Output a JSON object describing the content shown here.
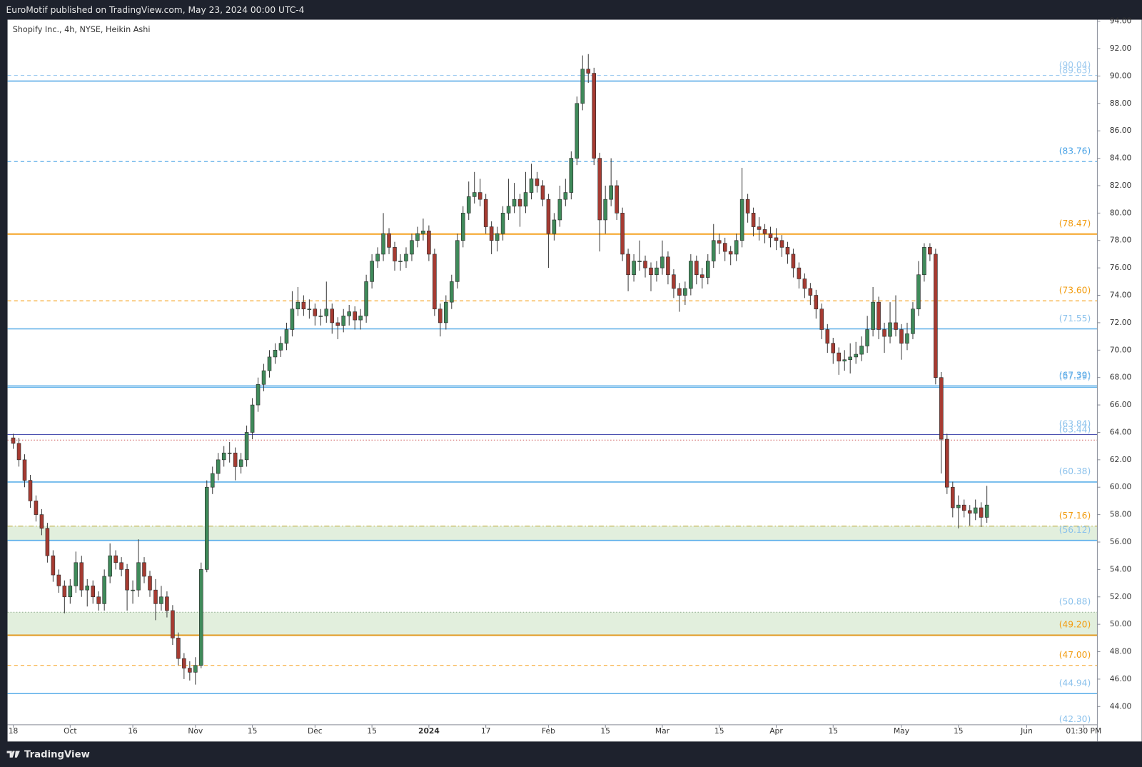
{
  "header": "EuroMotif published on TradingView.com, May 23, 2024 00:00 UTC-4",
  "brand": "TradingView",
  "chart_data": {
    "type": "candlestick",
    "title": "Shopify Inc., 4h, NYSE, Heikin Ashi",
    "up_color": "#3f8a5a",
    "down_color": "#a63b32",
    "wick_color": "#3a3a3a",
    "grid": false,
    "xlim": [
      -1,
      190.4
    ],
    "ylim": [
      42.67,
      94.11
    ],
    "xticks": [
      {
        "value": 0,
        "label": "18"
      },
      {
        "value": 10,
        "label": "Oct"
      },
      {
        "value": 21,
        "label": "16"
      },
      {
        "value": 32,
        "label": "Nov"
      },
      {
        "value": 42,
        "label": "15"
      },
      {
        "value": 53,
        "label": "Dec"
      },
      {
        "value": 63,
        "label": "15"
      },
      {
        "value": 73,
        "label": "2024",
        "bold": true
      },
      {
        "value": 83,
        "label": "17"
      },
      {
        "value": 94,
        "label": "Feb"
      },
      {
        "value": 104,
        "label": "15"
      },
      {
        "value": 114,
        "label": "Mar"
      },
      {
        "value": 124,
        "label": "15"
      },
      {
        "value": 134,
        "label": "Apr"
      },
      {
        "value": 144,
        "label": "15"
      },
      {
        "value": 156,
        "label": "May"
      },
      {
        "value": 166,
        "label": "15"
      },
      {
        "value": 178,
        "label": "Jun"
      },
      {
        "value": 188,
        "label": "01:30 PM"
      }
    ],
    "yticks": [
      {
        "value": 44,
        "label": "44.00"
      },
      {
        "value": 46,
        "label": "46.00"
      },
      {
        "value": 48,
        "label": "48.00"
      },
      {
        "value": 50,
        "label": "50.00"
      },
      {
        "value": 52,
        "label": "52.00"
      },
      {
        "value": 54,
        "label": "54.00"
      },
      {
        "value": 56,
        "label": "56.00"
      },
      {
        "value": 58,
        "label": "58.00"
      },
      {
        "value": 60,
        "label": "60.00"
      },
      {
        "value": 62,
        "label": "62.00"
      },
      {
        "value": 64,
        "label": "64.00"
      },
      {
        "value": 66,
        "label": "66.00"
      },
      {
        "value": 68,
        "label": "68.00"
      },
      {
        "value": 70,
        "label": "70.00"
      },
      {
        "value": 72,
        "label": "72.00"
      },
      {
        "value": 74,
        "label": "74.00"
      },
      {
        "value": 76,
        "label": "76.00"
      },
      {
        "value": 78,
        "label": "78.00"
      },
      {
        "value": 80,
        "label": "80.00"
      },
      {
        "value": 82,
        "label": "82.00"
      },
      {
        "value": 84,
        "label": "84.00"
      },
      {
        "value": 86,
        "label": "86.00"
      },
      {
        "value": 88,
        "label": "88.00"
      },
      {
        "value": 90,
        "label": "90.00"
      },
      {
        "value": 92,
        "label": "92.00"
      },
      {
        "value": 94,
        "label": "94.00"
      }
    ],
    "zones": [
      {
        "from": 56.12,
        "to": 57.16,
        "color": "#e2efdd"
      },
      {
        "from": 49.2,
        "to": 50.88,
        "color": "#e2efdd"
      }
    ],
    "levels": [
      {
        "value": 90.04,
        "label": "(90.04)",
        "color": "#8ec3ee",
        "label_color": "#9fcbef",
        "style": "dashed",
        "width": 1
      },
      {
        "value": 89.63,
        "label": "(89.63)",
        "color": "#4aa3e6",
        "label_color": "#9fcbef",
        "style": "solid",
        "width": 1.5
      },
      {
        "value": 83.76,
        "label": "(83.76)",
        "color": "#4aa3e6",
        "label_color": "#4aa3e6",
        "style": "dashed",
        "width": 1
      },
      {
        "value": 78.47,
        "label": "(78.47)",
        "color": "#f5a11f",
        "label_color": "#f29d12",
        "style": "solid",
        "width": 2
      },
      {
        "value": 73.6,
        "label": "(73.60)",
        "color": "#f5a11f",
        "label_color": "#f29d12",
        "style": "dashed",
        "width": 1
      },
      {
        "value": 71.55,
        "label": "(71.55)",
        "color": "#5aaee8",
        "label_color": "#8cc2ec",
        "style": "solid",
        "width": 1.5
      },
      {
        "value": 67.39,
        "label": "(67.39)",
        "color": "#5aaee8",
        "label_color": "#4aa3e6",
        "style": "solid",
        "width": 1.5
      },
      {
        "value": 67.29,
        "label": "(67.29)",
        "color": "#5aaee8",
        "label_color": "#8cc2ec",
        "style": "solid",
        "width": 1
      },
      {
        "value": 63.84,
        "label": "(63.84)",
        "color": "#4a4fb0",
        "label_color": "#8cc2ec",
        "style": "solid",
        "width": 1
      },
      {
        "value": 63.44,
        "label": "(63.44)",
        "color": "#d06060",
        "label_color": "#8cc2ec",
        "style": "dotted",
        "width": 1
      },
      {
        "value": 60.38,
        "label": "(60.38)",
        "color": "#5aaee8",
        "label_color": "#8cc2ec",
        "style": "solid",
        "width": 1.5
      },
      {
        "value": 57.16,
        "label": "(57.16)",
        "color": "#b8a830",
        "label_color": "#f29d12",
        "style": "dashdot",
        "width": 1
      },
      {
        "value": 56.12,
        "label": "(56.12)",
        "color": "#5aaee8",
        "label_color": "#8cc2ec",
        "style": "solid",
        "width": 1.5
      },
      {
        "value": 50.88,
        "label": "(50.88)",
        "color": "#8aa88a",
        "label_color": "#8cc2ec",
        "style": "dotted",
        "width": 1
      },
      {
        "value": 49.2,
        "label": "(49.20)",
        "color": "#e09a20",
        "label_color": "#f29d12",
        "style": "solid",
        "width": 2
      },
      {
        "value": 47.0,
        "label": "(47.00)",
        "color": "#f5a11f",
        "label_color": "#f29d12",
        "style": "dashed",
        "width": 1
      },
      {
        "value": 44.94,
        "label": "(44.94)",
        "color": "#5aaee8",
        "label_color": "#8cc2ec",
        "style": "solid",
        "width": 1.5
      },
      {
        "value": 42.3,
        "label": "(42.30)",
        "color": "#5aaee8",
        "label_color": "#8cc2ec",
        "style": "solid",
        "width": 1.5
      }
    ],
    "ohlc": [
      [
        63.6,
        63.9,
        62.8,
        63.2
      ],
      [
        63.2,
        63.6,
        61.5,
        62.0
      ],
      [
        62.0,
        62.4,
        60.0,
        60.5
      ],
      [
        60.5,
        60.9,
        58.5,
        59.0
      ],
      [
        59.0,
        59.4,
        57.5,
        58.0
      ],
      [
        58.0,
        58.4,
        56.5,
        57.0
      ],
      [
        57.0,
        57.4,
        54.5,
        55.0
      ],
      [
        55.0,
        55.4,
        53.1,
        53.6
      ],
      [
        53.6,
        54.0,
        52.3,
        52.8
      ],
      [
        52.8,
        53.2,
        50.8,
        52.0
      ],
      [
        52.0,
        53.3,
        51.5,
        52.8
      ],
      [
        52.8,
        55.3,
        52.3,
        54.5
      ],
      [
        54.5,
        55.0,
        52.0,
        52.5
      ],
      [
        52.5,
        53.3,
        51.3,
        52.8
      ],
      [
        52.8,
        53.2,
        51.5,
        52.0
      ],
      [
        52.0,
        52.4,
        51.0,
        51.5
      ],
      [
        51.5,
        54.0,
        51.0,
        53.5
      ],
      [
        53.5,
        55.9,
        53.0,
        55.0
      ],
      [
        55.0,
        55.4,
        54.0,
        54.5
      ],
      [
        54.5,
        54.9,
        53.5,
        54.0
      ],
      [
        54.0,
        54.4,
        51.0,
        52.5
      ],
      [
        52.5,
        53.2,
        51.5,
        52.5
      ],
      [
        52.5,
        56.2,
        52.0,
        54.5
      ],
      [
        54.5,
        54.9,
        53.0,
        53.5
      ],
      [
        53.5,
        53.9,
        52.0,
        52.5
      ],
      [
        52.5,
        53.3,
        50.3,
        51.5
      ],
      [
        51.5,
        52.8,
        51.0,
        52.0
      ],
      [
        52.0,
        52.4,
        50.5,
        51.0
      ],
      [
        51.0,
        51.4,
        48.5,
        49.0
      ],
      [
        49.0,
        49.4,
        47.0,
        47.5
      ],
      [
        47.5,
        47.9,
        46.0,
        46.8
      ],
      [
        46.8,
        47.3,
        45.9,
        46.5
      ],
      [
        46.5,
        47.6,
        45.6,
        47.0
      ],
      [
        47.0,
        54.5,
        46.8,
        54.0
      ],
      [
        54.0,
        60.5,
        53.8,
        60.0
      ],
      [
        60.0,
        61.5,
        59.5,
        61.0
      ],
      [
        61.0,
        62.5,
        60.5,
        62.0
      ],
      [
        62.0,
        63.0,
        61.5,
        62.5
      ],
      [
        62.5,
        63.3,
        61.8,
        62.5
      ],
      [
        62.5,
        62.9,
        60.5,
        61.5
      ],
      [
        61.5,
        62.5,
        61.0,
        62.0
      ],
      [
        62.0,
        64.5,
        61.5,
        64.0
      ],
      [
        64.0,
        66.5,
        63.5,
        66.0
      ],
      [
        66.0,
        68.0,
        65.5,
        67.5
      ],
      [
        67.5,
        69.0,
        67.0,
        68.5
      ],
      [
        68.5,
        70.0,
        68.0,
        69.5
      ],
      [
        69.5,
        70.5,
        69.0,
        70.0
      ],
      [
        70.0,
        71.0,
        69.5,
        70.5
      ],
      [
        70.5,
        72.0,
        70.0,
        71.5
      ],
      [
        71.5,
        74.3,
        71.0,
        73.0
      ],
      [
        73.0,
        74.6,
        72.5,
        73.5
      ],
      [
        73.5,
        74.0,
        72.5,
        73.0
      ],
      [
        73.0,
        73.7,
        72.3,
        73.0
      ],
      [
        73.0,
        73.4,
        71.8,
        72.5
      ],
      [
        72.5,
        73.0,
        71.8,
        72.5
      ],
      [
        72.5,
        75.0,
        72.0,
        73.0
      ],
      [
        73.0,
        73.4,
        71.2,
        72.0
      ],
      [
        72.0,
        72.4,
        70.8,
        71.8
      ],
      [
        71.8,
        73.0,
        71.3,
        72.5
      ],
      [
        72.5,
        73.3,
        71.8,
        72.8
      ],
      [
        72.8,
        73.2,
        71.5,
        72.2
      ],
      [
        72.2,
        73.0,
        71.5,
        72.5
      ],
      [
        72.5,
        75.5,
        72.0,
        75.0
      ],
      [
        75.0,
        77.0,
        74.5,
        76.5
      ],
      [
        76.5,
        77.5,
        76.0,
        77.0
      ],
      [
        77.0,
        80.0,
        76.5,
        78.5
      ],
      [
        78.5,
        78.9,
        77.0,
        77.5
      ],
      [
        77.5,
        77.9,
        75.8,
        76.5
      ],
      [
        76.5,
        77.0,
        75.8,
        76.5
      ],
      [
        76.5,
        77.5,
        76.0,
        77.0
      ],
      [
        77.0,
        78.5,
        76.5,
        78.0
      ],
      [
        78.0,
        79.0,
        77.5,
        78.5
      ],
      [
        78.5,
        79.6,
        78.0,
        78.7
      ],
      [
        78.7,
        79.1,
        76.5,
        77.0
      ],
      [
        77.0,
        77.4,
        72.5,
        73.0
      ],
      [
        73.0,
        73.4,
        71.0,
        72.0
      ],
      [
        72.0,
        74.0,
        71.5,
        73.5
      ],
      [
        73.5,
        75.5,
        73.0,
        75.0
      ],
      [
        75.0,
        78.5,
        74.5,
        78.0
      ],
      [
        78.0,
        80.5,
        77.5,
        80.0
      ],
      [
        80.0,
        82.3,
        79.5,
        81.2
      ],
      [
        81.2,
        83.0,
        80.7,
        81.5
      ],
      [
        81.5,
        82.5,
        80.5,
        81.0
      ],
      [
        81.0,
        81.4,
        78.5,
        79.0
      ],
      [
        79.0,
        79.4,
        77.0,
        78.0
      ],
      [
        78.0,
        79.0,
        77.2,
        78.5
      ],
      [
        78.5,
        80.5,
        78.0,
        80.0
      ],
      [
        80.0,
        82.5,
        79.5,
        80.5
      ],
      [
        80.5,
        82.2,
        80.0,
        81.0
      ],
      [
        81.0,
        81.4,
        79.0,
        80.5
      ],
      [
        80.5,
        83.0,
        80.0,
        81.5
      ],
      [
        81.5,
        83.6,
        81.0,
        82.5
      ],
      [
        82.5,
        83.0,
        81.5,
        82.0
      ],
      [
        82.0,
        82.4,
        80.5,
        81.0
      ],
      [
        81.0,
        81.4,
        76.0,
        78.5
      ],
      [
        78.5,
        80.0,
        78.0,
        79.5
      ],
      [
        79.5,
        82.0,
        79.0,
        81.0
      ],
      [
        81.0,
        82.5,
        80.5,
        81.5
      ],
      [
        81.5,
        84.5,
        81.0,
        84.0
      ],
      [
        84.0,
        88.5,
        83.5,
        88.0
      ],
      [
        88.0,
        91.5,
        87.5,
        90.5
      ],
      [
        90.5,
        91.6,
        89.5,
        90.2
      ],
      [
        90.2,
        90.6,
        83.5,
        84.0
      ],
      [
        84.0,
        84.4,
        77.2,
        79.5
      ],
      [
        79.5,
        82.0,
        78.5,
        81.0
      ],
      [
        81.0,
        84.0,
        80.5,
        82.0
      ],
      [
        82.0,
        82.4,
        79.5,
        80.0
      ],
      [
        80.0,
        80.4,
        76.5,
        77.0
      ],
      [
        77.0,
        77.4,
        74.3,
        75.5
      ],
      [
        75.5,
        77.0,
        75.0,
        76.5
      ],
      [
        76.5,
        78.0,
        75.8,
        76.5
      ],
      [
        76.5,
        76.9,
        75.3,
        76.0
      ],
      [
        76.0,
        76.4,
        74.3,
        75.5
      ],
      [
        75.5,
        76.5,
        75.0,
        76.0
      ],
      [
        76.0,
        78.0,
        75.5,
        76.8
      ],
      [
        76.8,
        77.2,
        74.8,
        75.5
      ],
      [
        75.5,
        75.9,
        73.8,
        74.5
      ],
      [
        74.5,
        74.9,
        72.8,
        74.0
      ],
      [
        74.0,
        75.0,
        73.3,
        74.5
      ],
      [
        74.5,
        77.0,
        74.0,
        76.5
      ],
      [
        76.5,
        76.9,
        74.8,
        75.5
      ],
      [
        75.5,
        76.0,
        74.5,
        75.3
      ],
      [
        75.3,
        77.0,
        74.8,
        76.5
      ],
      [
        76.5,
        79.2,
        76.0,
        78.0
      ],
      [
        78.0,
        78.5,
        77.0,
        77.8
      ],
      [
        77.8,
        78.2,
        76.5,
        77.2
      ],
      [
        77.2,
        77.6,
        76.2,
        77.0
      ],
      [
        77.0,
        78.5,
        76.5,
        78.0
      ],
      [
        78.0,
        83.3,
        77.5,
        81.0
      ],
      [
        81.0,
        81.4,
        79.3,
        80.0
      ],
      [
        80.0,
        80.4,
        78.3,
        79.0
      ],
      [
        79.0,
        79.7,
        78.0,
        78.8
      ],
      [
        78.8,
        79.2,
        77.8,
        78.5
      ],
      [
        78.5,
        79.0,
        77.5,
        78.2
      ],
      [
        78.2,
        78.9,
        77.3,
        78.0
      ],
      [
        78.0,
        78.4,
        76.8,
        77.5
      ],
      [
        77.5,
        77.9,
        76.3,
        77.0
      ],
      [
        77.0,
        77.4,
        75.3,
        76.0
      ],
      [
        76.0,
        76.4,
        74.5,
        75.2
      ],
      [
        75.2,
        75.6,
        73.8,
        74.5
      ],
      [
        74.5,
        74.9,
        73.3,
        74.0
      ],
      [
        74.0,
        74.4,
        72.3,
        73.0
      ],
      [
        73.0,
        73.4,
        70.8,
        71.5
      ],
      [
        71.5,
        71.9,
        69.8,
        70.5
      ],
      [
        70.5,
        70.9,
        69.0,
        69.8
      ],
      [
        69.8,
        70.2,
        68.2,
        69.2
      ],
      [
        69.2,
        70.0,
        68.5,
        69.3
      ],
      [
        69.3,
        70.5,
        68.3,
        69.5
      ],
      [
        69.5,
        70.6,
        69.0,
        69.7
      ],
      [
        69.7,
        71.0,
        69.2,
        70.3
      ],
      [
        70.3,
        72.5,
        69.8,
        71.5
      ],
      [
        71.5,
        74.6,
        71.0,
        73.5
      ],
      [
        73.5,
        73.9,
        70.8,
        71.5
      ],
      [
        71.5,
        72.0,
        69.8,
        71.0
      ],
      [
        71.0,
        73.5,
        70.5,
        72.0
      ],
      [
        72.0,
        74.0,
        71.0,
        71.5
      ],
      [
        71.5,
        71.9,
        69.3,
        70.5
      ],
      [
        70.5,
        72.0,
        70.0,
        71.2
      ],
      [
        71.2,
        73.5,
        70.8,
        73.0
      ],
      [
        73.0,
        76.5,
        72.5,
        75.5
      ],
      [
        75.5,
        77.8,
        75.0,
        77.5
      ],
      [
        77.5,
        77.8,
        76.5,
        77.0
      ],
      [
        77.0,
        77.4,
        67.5,
        68.0
      ],
      [
        68.0,
        68.4,
        61.0,
        63.5
      ],
      [
        63.5,
        63.9,
        59.5,
        60.0
      ],
      [
        60.0,
        60.4,
        57.8,
        58.5
      ],
      [
        58.5,
        59.4,
        57.0,
        58.7
      ],
      [
        58.7,
        59.1,
        57.8,
        58.3
      ],
      [
        58.3,
        58.7,
        57.2,
        58.1
      ],
      [
        58.1,
        59.1,
        57.6,
        58.5
      ],
      [
        58.5,
        58.9,
        57.1,
        57.8
      ],
      [
        57.8,
        60.1,
        57.4,
        58.7
      ]
    ]
  }
}
